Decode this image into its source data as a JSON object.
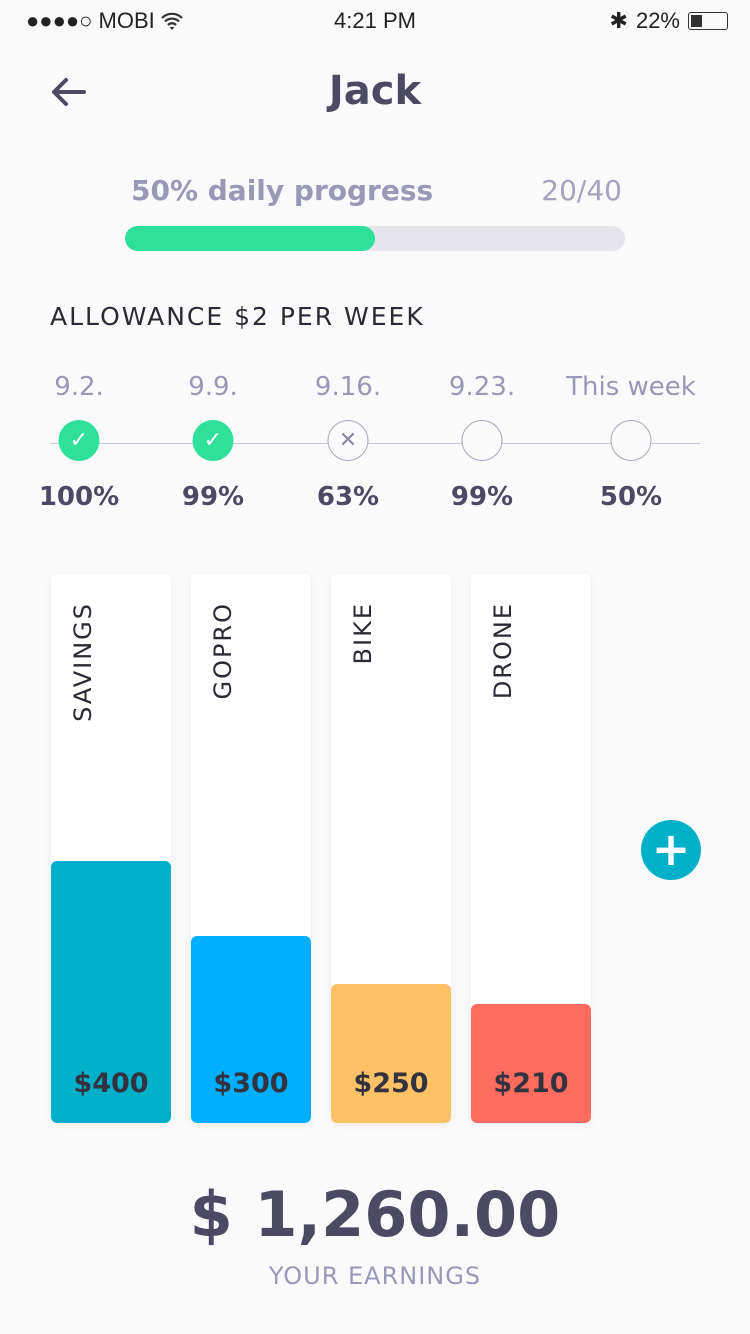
{
  "status": {
    "carrier": "●●●●○ MOBI",
    "wifi_icon": "wifi-icon",
    "time": "4:21 PM",
    "bluetooth_icon": "bluetooth-icon",
    "battery": "22%",
    "battery_level": 0.22
  },
  "header": {
    "title": "Jack"
  },
  "progress": {
    "label": "50% daily progress",
    "count": "20/40",
    "fraction": 0.5
  },
  "allowance": {
    "title": "ALLOWANCE $2 PER WEEK"
  },
  "weeks": [
    {
      "date": "9.2.",
      "percent": "100%",
      "state": "done"
    },
    {
      "date": "9.9.",
      "percent": "99%",
      "state": "done"
    },
    {
      "date": "9.16.",
      "percent": "63%",
      "state": "failed"
    },
    {
      "date": "9.23.",
      "percent": "99%",
      "state": "open"
    },
    {
      "date": "This week",
      "percent": "50%",
      "state": "open"
    }
  ],
  "goals": [
    {
      "name": "SAVINGS",
      "amount": "$400",
      "fill": 0.477,
      "color": "#00afc9"
    },
    {
      "name": "GOPRO",
      "amount": "$300",
      "fill": 0.341,
      "color": "#00aeff"
    },
    {
      "name": "BIKE",
      "amount": "$250",
      "fill": 0.253,
      "color": "#ffc166"
    },
    {
      "name": "DRONE",
      "amount": "$210",
      "fill": 0.217,
      "color": "#ff6b5e"
    }
  ],
  "add_button": "+",
  "earnings": {
    "total": "$ 1,260.00",
    "label": "YOUR EARNINGS"
  }
}
